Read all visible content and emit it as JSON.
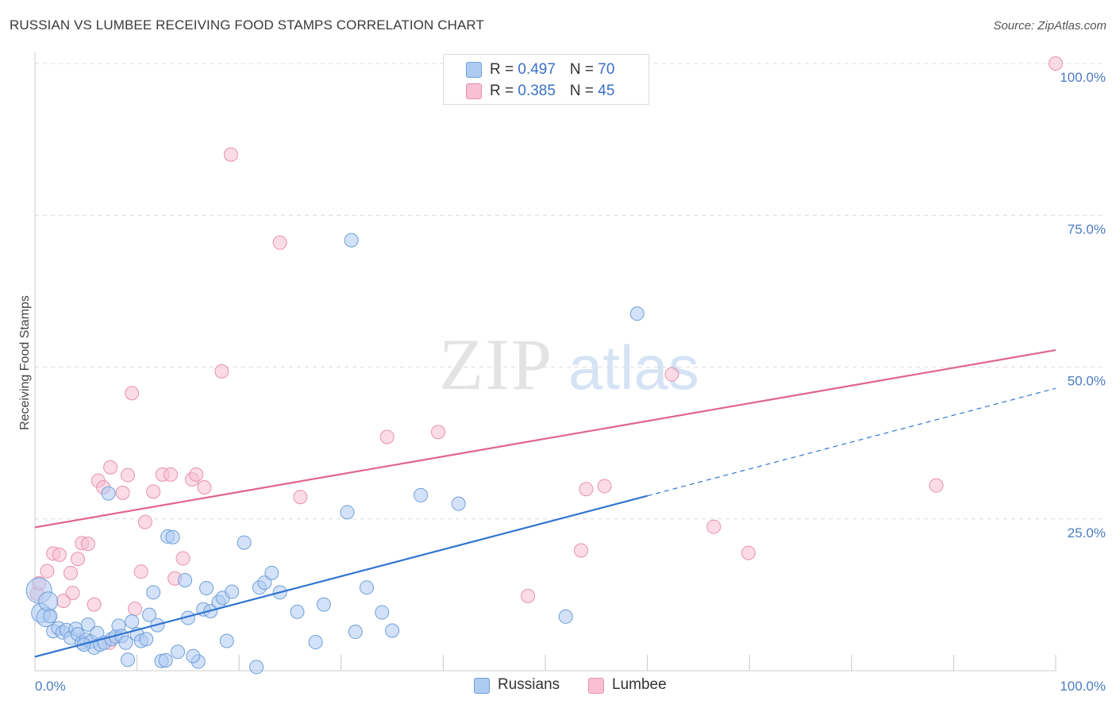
{
  "title": "RUSSIAN VS LUMBEE RECEIVING FOOD STAMPS CORRELATION CHART",
  "source": "Source: ZipAtlas.com",
  "watermark": {
    "zip": "ZIP",
    "atlas": "atlas"
  },
  "legend": {
    "rows": [
      {
        "r_label": "R = ",
        "r_value": "0.497",
        "n_label": "N = ",
        "n_value": "70"
      },
      {
        "r_label": "R = ",
        "r_value": "0.385",
        "n_label": "N = ",
        "n_value": "45"
      }
    ]
  },
  "colors": {
    "russians_fill": "#aecbf2",
    "russians_stroke": "#6f9fd8",
    "russians_line": "#2f74d0",
    "lumbee_fill": "#f8c0d2",
    "lumbee_stroke": "#e890ae",
    "lumbee_line": "#e0648e",
    "tick_text": "#4a7cc4",
    "grid": "#dcdcdc"
  },
  "chart_data": {
    "type": "scatter",
    "title": "RUSSIAN VS LUMBEE RECEIVING FOOD STAMPS CORRELATION CHART",
    "xlabel": "",
    "ylabel": "Receiving Food Stamps",
    "xlim": [
      0,
      100
    ],
    "ylim": [
      0,
      100
    ],
    "x_ticks": [
      "0.0%",
      "100.0%"
    ],
    "y_ticks": [
      {
        "value": 25,
        "label": "25.0%"
      },
      {
        "value": 50,
        "label": "50.0%"
      },
      {
        "value": 75,
        "label": "75.0%"
      },
      {
        "value": 100,
        "label": "100.0%"
      }
    ],
    "grid": true,
    "legend_position": "top-center",
    "series": [
      {
        "name": "Russians",
        "r": 0.497,
        "n": 70,
        "trend": {
          "x0": 0,
          "y0": 2.3,
          "x1": 60,
          "y1": 28.8,
          "dashed_to_x": 100,
          "dashed_to_y": 46.5
        },
        "points": [
          [
            0.4,
            13.2
          ],
          [
            0.6,
            9.5
          ],
          [
            1.1,
            8.8
          ],
          [
            1.3,
            11.4
          ],
          [
            1.8,
            6.5
          ],
          [
            2.3,
            7.0
          ],
          [
            2.7,
            6.3
          ],
          [
            3.1,
            6.7
          ],
          [
            3.5,
            5.4
          ],
          [
            4.0,
            6.9
          ],
          [
            4.2,
            6.0
          ],
          [
            4.6,
            4.6
          ],
          [
            5.0,
            5.1
          ],
          [
            5.2,
            7.6
          ],
          [
            5.5,
            4.8
          ],
          [
            5.8,
            3.8
          ],
          [
            6.1,
            6.2
          ],
          [
            6.4,
            4.3
          ],
          [
            6.8,
            4.6
          ],
          [
            7.2,
            29.2
          ],
          [
            7.5,
            5.2
          ],
          [
            7.9,
            5.6
          ],
          [
            8.2,
            7.4
          ],
          [
            8.5,
            5.7
          ],
          [
            8.9,
            4.6
          ],
          [
            9.1,
            1.8
          ],
          [
            9.5,
            8.1
          ],
          [
            10.0,
            6.0
          ],
          [
            10.4,
            4.9
          ],
          [
            10.9,
            5.2
          ],
          [
            11.2,
            9.2
          ],
          [
            11.6,
            12.9
          ],
          [
            12.0,
            7.5
          ],
          [
            12.4,
            1.6
          ],
          [
            12.8,
            1.7
          ],
          [
            13.0,
            22.1
          ],
          [
            13.5,
            22.0
          ],
          [
            14.0,
            3.1
          ],
          [
            14.7,
            14.9
          ],
          [
            15.0,
            8.7
          ],
          [
            16.0,
            1.5
          ],
          [
            15.5,
            2.4
          ],
          [
            16.5,
            10.1
          ],
          [
            16.8,
            13.6
          ],
          [
            17.2,
            9.8
          ],
          [
            18.0,
            11.3
          ],
          [
            18.4,
            12.0
          ],
          [
            18.8,
            4.9
          ],
          [
            19.3,
            13.0
          ],
          [
            20.5,
            21.1
          ],
          [
            21.7,
            0.6
          ],
          [
            22.0,
            13.7
          ],
          [
            22.5,
            14.5
          ],
          [
            23.2,
            16.1
          ],
          [
            24.0,
            12.9
          ],
          [
            25.7,
            9.7
          ],
          [
            27.5,
            4.7
          ],
          [
            28.3,
            10.9
          ],
          [
            30.6,
            26.1
          ],
          [
            31.0,
            70.9
          ],
          [
            31.4,
            6.4
          ],
          [
            32.5,
            13.7
          ],
          [
            34.0,
            9.6
          ],
          [
            35.0,
            6.6
          ],
          [
            37.8,
            28.9
          ],
          [
            41.5,
            27.5
          ],
          [
            52.0,
            8.9
          ],
          [
            59.0,
            58.8
          ],
          [
            1.5,
            9.0
          ],
          [
            4.8,
            4.3
          ]
        ]
      },
      {
        "name": "Lumbee",
        "r": 0.385,
        "n": 45,
        "trend": {
          "x0": 0,
          "y0": 23.6,
          "x1": 100,
          "y1": 52.8
        },
        "points": [
          [
            0.2,
            12.7
          ],
          [
            0.4,
            14.4
          ],
          [
            1.2,
            16.4
          ],
          [
            1.8,
            19.3
          ],
          [
            2.4,
            19.1
          ],
          [
            2.8,
            11.5
          ],
          [
            3.5,
            16.1
          ],
          [
            3.7,
            12.8
          ],
          [
            4.2,
            18.4
          ],
          [
            4.6,
            21.0
          ],
          [
            5.2,
            20.9
          ],
          [
            5.8,
            10.9
          ],
          [
            6.2,
            31.3
          ],
          [
            6.7,
            30.2
          ],
          [
            7.4,
            33.5
          ],
          [
            8.6,
            29.3
          ],
          [
            9.1,
            32.2
          ],
          [
            9.5,
            45.7
          ],
          [
            9.8,
            10.2
          ],
          [
            10.4,
            16.3
          ],
          [
            10.8,
            24.5
          ],
          [
            11.6,
            29.5
          ],
          [
            12.5,
            32.3
          ],
          [
            13.3,
            32.3
          ],
          [
            13.7,
            15.2
          ],
          [
            14.5,
            18.5
          ],
          [
            15.4,
            31.5
          ],
          [
            15.8,
            32.3
          ],
          [
            16.6,
            30.2
          ],
          [
            18.3,
            49.3
          ],
          [
            19.2,
            85.0
          ],
          [
            24.0,
            70.5
          ],
          [
            26.0,
            28.6
          ],
          [
            34.5,
            38.5
          ],
          [
            39.5,
            39.3
          ],
          [
            48.3,
            12.3
          ],
          [
            53.5,
            19.8
          ],
          [
            54.0,
            29.9
          ],
          [
            55.8,
            30.4
          ],
          [
            62.4,
            48.8
          ],
          [
            66.5,
            23.7
          ],
          [
            69.9,
            19.4
          ],
          [
            88.3,
            30.5
          ],
          [
            100.0,
            100.0
          ],
          [
            7.3,
            4.6
          ]
        ]
      }
    ]
  },
  "bottom_legend": [
    "Russians",
    "Lumbee"
  ]
}
